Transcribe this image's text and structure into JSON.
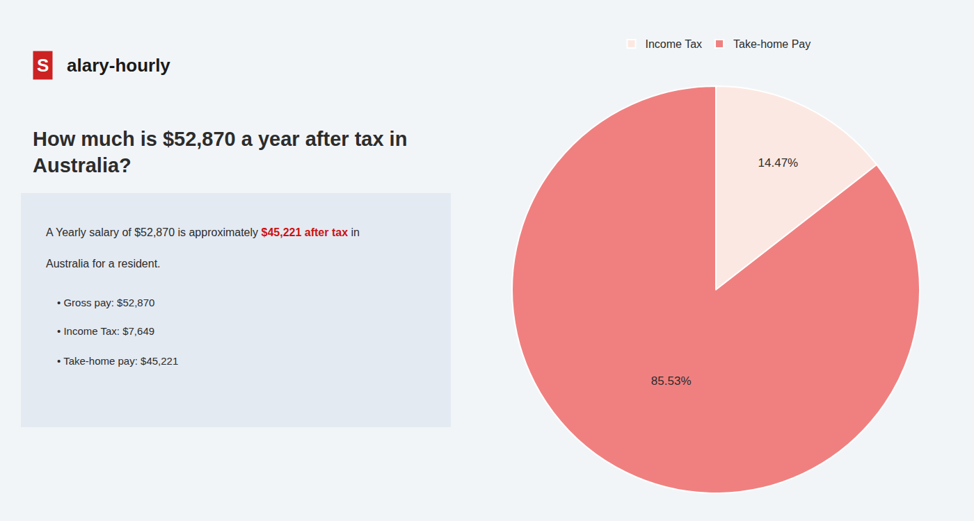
{
  "chart_data": {
    "type": "pie",
    "title": "How much is $52,870 a year after tax in\nAustralia?",
    "categories": [
      "Income Tax",
      "Take-home Pay"
    ],
    "values": [
      14.47,
      85.53
    ],
    "value_labels": [
      "14.47%",
      "85.53%"
    ],
    "colors": [
      "#fce8e2",
      "#f08080"
    ],
    "data_labels": true,
    "legend": "top",
    "annotations": [
      {
        "text": "S",
        "color": "#cc2222"
      },
      {
        "text": "alary-hourly"
      },
      {
        "text": "A Yearly salary of $52,870 is approximately "
      },
      {
        "text": "$45,221 after tax",
        "color": "#cc1111"
      },
      {
        "text": " in"
      },
      {
        "text": "Australia for a resident."
      },
      {
        "text": "• Gross pay: $52,870"
      },
      {
        "text": "• Income Tax: $7,649"
      },
      {
        "text": "• Take-home pay: $45,221"
      }
    ]
  }
}
